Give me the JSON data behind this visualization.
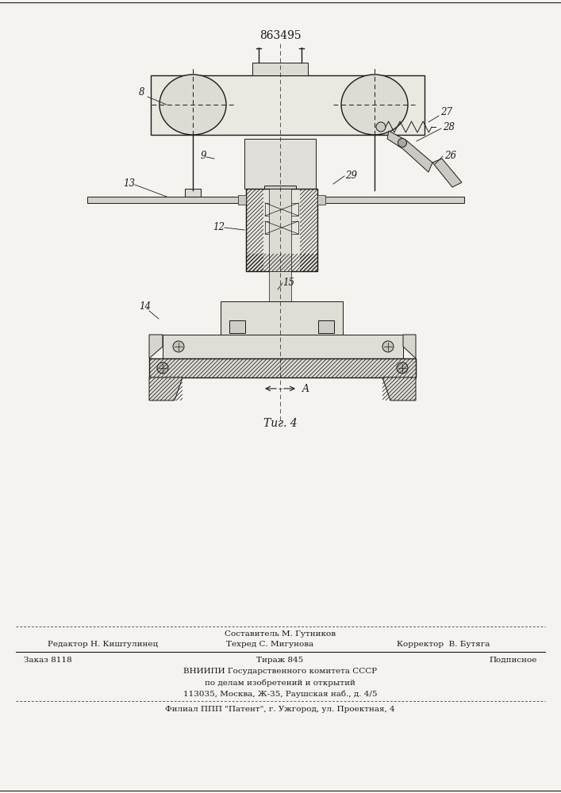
{
  "patent_number": "863495",
  "fig_label": "Τиг. 4",
  "background_color": "#f5f3ef",
  "line_color": "#1a1a1a",
  "footer": {
    "sestavitel": "Составитель М. Гутников",
    "redaktor": "Редактор Н. Киштулинец",
    "tehred": "Техред С. Мигунова",
    "korrektor": "Корректор  В. Бутяга",
    "zakaz": "Заказ 8118",
    "tirazh": "Тираж 845",
    "podpisnoe": "Подписное",
    "vnipi": "ВНИИПИ Государственного комитета СССР",
    "po_delam": "по делам изобретений и открытий",
    "address": "113035, Москва, Ж-35, Раушская наб., д. 4/5",
    "filial": "Филиал ППП \"Патент\", г. Ужгород, ул. Проектная, 4"
  }
}
